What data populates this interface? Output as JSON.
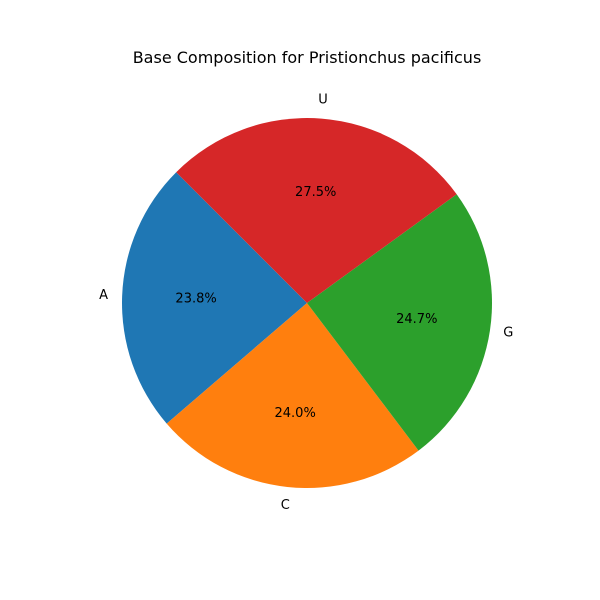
{
  "chart_data": {
    "type": "pie",
    "title": "Base Composition for Pristionchus pacificus",
    "slices": [
      {
        "label": "A",
        "value": 23.8,
        "pct_label": "23.8%",
        "color": "#1f77b4"
      },
      {
        "label": "C",
        "value": 24.0,
        "pct_label": "24.0%",
        "color": "#ff7f0e"
      },
      {
        "label": "G",
        "value": 24.7,
        "pct_label": "24.7%",
        "color": "#2ca02c"
      },
      {
        "label": "U",
        "value": 27.5,
        "pct_label": "27.5%",
        "color": "#d62728"
      }
    ],
    "start_angle_deg": 135,
    "direction": "counterclockwise",
    "legend": "none"
  }
}
